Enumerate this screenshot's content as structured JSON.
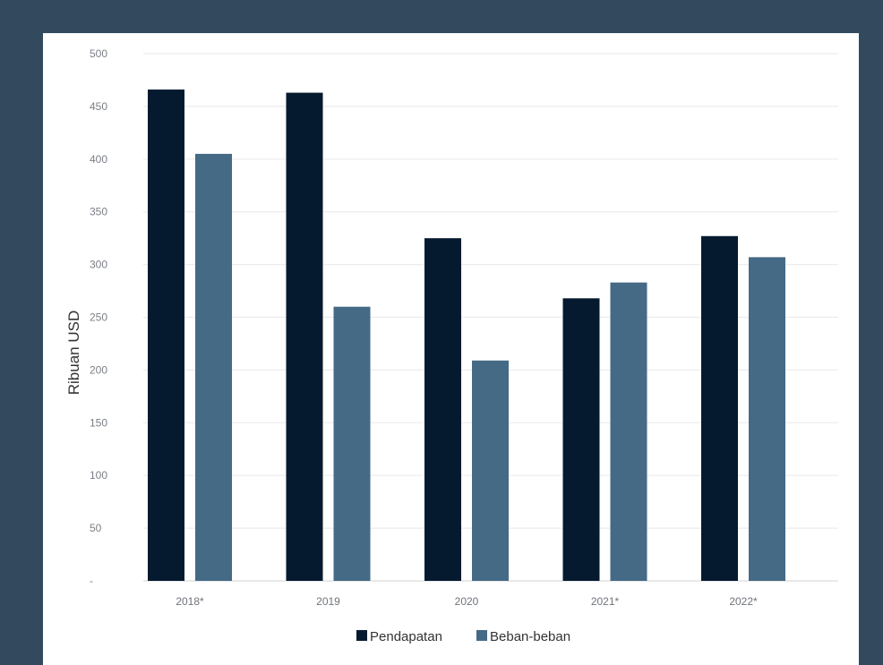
{
  "chart_data": {
    "type": "bar",
    "title": "",
    "xlabel": "",
    "ylabel": "Ribuan USD",
    "categories": [
      "2018*",
      "2019",
      "2020",
      "2021*",
      "2022*"
    ],
    "series": [
      {
        "name": "Pendapatan",
        "color": "#061a2f",
        "values": [
          466,
          463,
          325,
          268,
          327
        ]
      },
      {
        "name": "Beban-beban",
        "color": "#456a86",
        "values": [
          405,
          260,
          209,
          283,
          307
        ]
      }
    ],
    "ylim": [
      0,
      500
    ],
    "yticks": [
      0,
      50,
      100,
      150,
      200,
      250,
      300,
      350,
      400,
      450,
      500
    ],
    "ytick_labels": [
      "-",
      "50",
      "100",
      "150",
      "200",
      "250",
      "300",
      "350",
      "400",
      "450",
      "500"
    ],
    "grid": true,
    "legend_position": "bottom-center"
  }
}
